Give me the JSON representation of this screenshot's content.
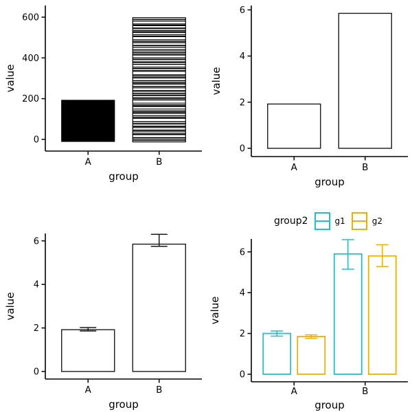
{
  "chart_data": {
    "layout": "2x2-grid",
    "legend": {
      "title": "group2",
      "position": "top-of-bottom-right-panel",
      "entries": [
        {
          "label": "g1",
          "color": "#25BEC8"
        },
        {
          "label": "g2",
          "color": "#EBB000"
        }
      ]
    },
    "panels": [
      {
        "name": "stacked-raw-values",
        "type": "bar",
        "xlabel": "group",
        "ylabel": "value",
        "categories": [
          "A",
          "B"
        ],
        "yticks": [
          0,
          200,
          400,
          600
        ],
        "ylim": [
          -60,
          660
        ],
        "grid": false,
        "bars": [
          {
            "category": "A",
            "style": "solid-black",
            "base": -10,
            "top": 192
          },
          {
            "category": "B",
            "style": "stacked-outline",
            "negatives": [
              -5,
              -7
            ],
            "segments": [
              7,
              2,
              14,
              4,
              1,
              9,
              6,
              3,
              12,
              5,
              2,
              10,
              3,
              8,
              1,
              16,
              5,
              2,
              7,
              11,
              4,
              6,
              2,
              9,
              12,
              3,
              5,
              1,
              8,
              15,
              2,
              6,
              4,
              10,
              3,
              7,
              2,
              9,
              4,
              13,
              6,
              1,
              11,
              5,
              3,
              8,
              2,
              12,
              5,
              1,
              7,
              3,
              17,
              4,
              9,
              2,
              6,
              13,
              1,
              8,
              4,
              10,
              2,
              6,
              1,
              14,
              3,
              7,
              5,
              9,
              2,
              11,
              8,
              3,
              12,
              5,
              2,
              7,
              1,
              15,
              4,
              6,
              10,
              2,
              6,
              2,
              9,
              4,
              11,
              3,
              5,
              1,
              13,
              7,
              2,
              8
            ]
          }
        ]
      },
      {
        "name": "mean-bars",
        "type": "bar",
        "xlabel": "group",
        "ylabel": "value",
        "categories": [
          "A",
          "B"
        ],
        "yticks": [
          0,
          2,
          4,
          6
        ],
        "ylim": [
          -0.35,
          6.2
        ],
        "grid": false,
        "values": [
          1.92,
          5.85
        ]
      },
      {
        "name": "mean-bars-with-errorbars",
        "type": "bar",
        "xlabel": "group",
        "ylabel": "value",
        "categories": [
          "A",
          "B"
        ],
        "yticks": [
          0,
          2,
          4,
          6
        ],
        "ylim": [
          -0.35,
          6.6
        ],
        "grid": false,
        "values": [
          1.92,
          5.85
        ],
        "errorbars": [
          [
            1.86,
            2.02
          ],
          [
            5.75,
            6.3
          ]
        ]
      },
      {
        "name": "grouped-mean-bars-with-errorbars",
        "type": "bar",
        "xlabel": "group",
        "ylabel": "value",
        "categories": [
          "A",
          "B"
        ],
        "yticks": [
          0,
          2,
          4,
          6
        ],
        "ylim": [
          -0.36,
          6.9
        ],
        "grid": false,
        "series": [
          {
            "name": "g1",
            "color": "#25BEC8",
            "values": [
              2.0,
              5.9
            ],
            "errorbars": [
              [
                1.87,
                2.12
              ],
              [
                5.15,
                6.6
              ]
            ]
          },
          {
            "name": "g2",
            "color": "#EBB000",
            "values": [
              1.85,
              5.8
            ],
            "errorbars": [
              [
                1.76,
                1.93
              ],
              [
                5.28,
                6.35
              ]
            ]
          }
        ]
      }
    ]
  }
}
